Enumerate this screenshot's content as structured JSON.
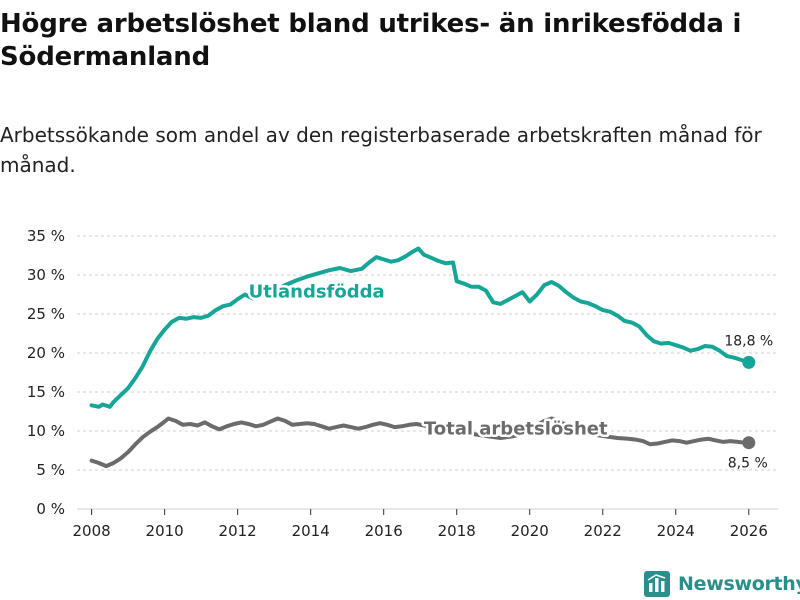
{
  "header": {
    "title": "Högre arbetslöshet bland utrikes- än inrikesfödda i Södermanland",
    "subtitle": "Arbetssökande som andel av den registerbaserade arbetskraften månad för månad."
  },
  "brand": {
    "name": "Newsworthy",
    "icon": "bar-chart-logo-icon",
    "color": "#2a8f8a"
  },
  "chart_data": {
    "type": "line",
    "ylim": [
      0,
      35
    ],
    "xlim": [
      2007.6,
      2026.8
    ],
    "yticks": [
      {
        "value": 0,
        "label": "0 %"
      },
      {
        "value": 5,
        "label": "5 %"
      },
      {
        "value": 10,
        "label": "10 %"
      },
      {
        "value": 15,
        "label": "15 %"
      },
      {
        "value": 20,
        "label": "20 %"
      },
      {
        "value": 25,
        "label": "25 %"
      },
      {
        "value": 30,
        "label": "30 %"
      },
      {
        "value": 35,
        "label": "35 %"
      }
    ],
    "xticks": [
      {
        "value": 2008,
        "label": "2008"
      },
      {
        "value": 2010,
        "label": "2010"
      },
      {
        "value": 2012,
        "label": "2012"
      },
      {
        "value": 2014,
        "label": "2014"
      },
      {
        "value": 2016,
        "label": "2016"
      },
      {
        "value": 2018,
        "label": "2018"
      },
      {
        "value": 2020,
        "label": "2020"
      },
      {
        "value": 2022,
        "label": "2022"
      },
      {
        "value": 2024,
        "label": "2024"
      },
      {
        "value": 2026,
        "label": "2026"
      }
    ],
    "grid": true,
    "series": [
      {
        "name": "Utlandsfödda",
        "color": "#16a596",
        "end_label": "18,8 %",
        "points": [
          [
            2008.0,
            13.3
          ],
          [
            2008.2,
            13.1
          ],
          [
            2008.3,
            13.4
          ],
          [
            2008.5,
            13.1
          ],
          [
            2008.6,
            13.7
          ],
          [
            2008.8,
            14.6
          ],
          [
            2009.0,
            15.5
          ],
          [
            2009.2,
            16.8
          ],
          [
            2009.4,
            18.3
          ],
          [
            2009.6,
            20.2
          ],
          [
            2009.8,
            21.8
          ],
          [
            2010.0,
            23.0
          ],
          [
            2010.2,
            24.0
          ],
          [
            2010.4,
            24.5
          ],
          [
            2010.6,
            24.4
          ],
          [
            2010.8,
            24.6
          ],
          [
            2011.0,
            24.5
          ],
          [
            2011.2,
            24.8
          ],
          [
            2011.4,
            25.5
          ],
          [
            2011.6,
            26.0
          ],
          [
            2011.8,
            26.2
          ],
          [
            2012.0,
            26.9
          ],
          [
            2012.2,
            27.5
          ],
          [
            2012.4,
            27.0
          ],
          [
            2012.6,
            27.3
          ],
          [
            2012.8,
            27.6
          ],
          [
            2013.0,
            28.0
          ],
          [
            2013.3,
            28.7
          ],
          [
            2013.6,
            29.3
          ],
          [
            2013.9,
            29.8
          ],
          [
            2014.2,
            30.2
          ],
          [
            2014.5,
            30.6
          ],
          [
            2014.8,
            30.9
          ],
          [
            2015.1,
            30.5
          ],
          [
            2015.4,
            30.8
          ],
          [
            2015.6,
            31.6
          ],
          [
            2015.8,
            32.3
          ],
          [
            2016.0,
            32.0
          ],
          [
            2016.2,
            31.7
          ],
          [
            2016.4,
            31.9
          ],
          [
            2016.6,
            32.4
          ],
          [
            2016.8,
            33.0
          ],
          [
            2016.95,
            33.4
          ],
          [
            2017.1,
            32.6
          ],
          [
            2017.3,
            32.2
          ],
          [
            2017.5,
            31.8
          ],
          [
            2017.7,
            31.5
          ],
          [
            2017.9,
            31.6
          ],
          [
            2018.0,
            29.2
          ],
          [
            2018.2,
            28.9
          ],
          [
            2018.4,
            28.5
          ],
          [
            2018.6,
            28.5
          ],
          [
            2018.8,
            28.0
          ],
          [
            2019.0,
            26.5
          ],
          [
            2019.2,
            26.3
          ],
          [
            2019.4,
            26.8
          ],
          [
            2019.6,
            27.3
          ],
          [
            2019.8,
            27.8
          ],
          [
            2020.0,
            26.6
          ],
          [
            2020.2,
            27.5
          ],
          [
            2020.4,
            28.7
          ],
          [
            2020.6,
            29.1
          ],
          [
            2020.8,
            28.6
          ],
          [
            2021.0,
            27.8
          ],
          [
            2021.2,
            27.1
          ],
          [
            2021.4,
            26.6
          ],
          [
            2021.6,
            26.4
          ],
          [
            2021.8,
            26.0
          ],
          [
            2022.0,
            25.5
          ],
          [
            2022.2,
            25.3
          ],
          [
            2022.4,
            24.8
          ],
          [
            2022.6,
            24.1
          ],
          [
            2022.8,
            23.9
          ],
          [
            2023.0,
            23.4
          ],
          [
            2023.2,
            22.3
          ],
          [
            2023.4,
            21.5
          ],
          [
            2023.6,
            21.2
          ],
          [
            2023.8,
            21.3
          ],
          [
            2024.0,
            21.0
          ],
          [
            2024.2,
            20.7
          ],
          [
            2024.4,
            20.3
          ],
          [
            2024.6,
            20.5
          ],
          [
            2024.8,
            20.9
          ],
          [
            2025.0,
            20.8
          ],
          [
            2025.2,
            20.3
          ],
          [
            2025.4,
            19.6
          ],
          [
            2025.6,
            19.4
          ],
          [
            2025.8,
            19.1
          ],
          [
            2026.0,
            18.8
          ]
        ]
      },
      {
        "name": "Total arbetslöshet",
        "color": "#6b6b6b",
        "end_label": "8,5 %",
        "points": [
          [
            2008.0,
            6.2
          ],
          [
            2008.2,
            5.9
          ],
          [
            2008.4,
            5.5
          ],
          [
            2008.6,
            5.9
          ],
          [
            2008.8,
            6.5
          ],
          [
            2009.0,
            7.3
          ],
          [
            2009.2,
            8.3
          ],
          [
            2009.4,
            9.2
          ],
          [
            2009.6,
            9.9
          ],
          [
            2009.8,
            10.5
          ],
          [
            2010.0,
            11.2
          ],
          [
            2010.1,
            11.6
          ],
          [
            2010.3,
            11.3
          ],
          [
            2010.5,
            10.8
          ],
          [
            2010.7,
            10.9
          ],
          [
            2010.9,
            10.7
          ],
          [
            2011.1,
            11.1
          ],
          [
            2011.3,
            10.6
          ],
          [
            2011.5,
            10.2
          ],
          [
            2011.7,
            10.6
          ],
          [
            2011.9,
            10.9
          ],
          [
            2012.1,
            11.1
          ],
          [
            2012.3,
            10.9
          ],
          [
            2012.5,
            10.6
          ],
          [
            2012.7,
            10.8
          ],
          [
            2012.9,
            11.2
          ],
          [
            2013.1,
            11.6
          ],
          [
            2013.3,
            11.3
          ],
          [
            2013.5,
            10.8
          ],
          [
            2013.7,
            10.9
          ],
          [
            2013.9,
            11.0
          ],
          [
            2014.1,
            10.9
          ],
          [
            2014.3,
            10.6
          ],
          [
            2014.5,
            10.3
          ],
          [
            2014.7,
            10.5
          ],
          [
            2014.9,
            10.7
          ],
          [
            2015.1,
            10.5
          ],
          [
            2015.3,
            10.3
          ],
          [
            2015.5,
            10.5
          ],
          [
            2015.7,
            10.8
          ],
          [
            2015.9,
            11.0
          ],
          [
            2016.1,
            10.8
          ],
          [
            2016.3,
            10.5
          ],
          [
            2016.5,
            10.6
          ],
          [
            2016.7,
            10.8
          ],
          [
            2016.9,
            10.9
          ],
          [
            2017.1,
            10.7
          ],
          [
            2017.3,
            10.5
          ],
          [
            2017.6,
            10.2
          ],
          [
            2017.9,
            10.0
          ],
          [
            2018.2,
            9.8
          ],
          [
            2018.6,
            9.5
          ],
          [
            2018.9,
            9.3
          ],
          [
            2019.2,
            9.1
          ],
          [
            2019.5,
            9.3
          ],
          [
            2019.8,
            9.6
          ],
          [
            2020.1,
            10.5
          ],
          [
            2020.4,
            11.3
          ],
          [
            2020.6,
            11.6
          ],
          [
            2020.9,
            11.0
          ],
          [
            2021.2,
            10.4
          ],
          [
            2021.5,
            10.0
          ],
          [
            2021.8,
            9.5
          ],
          [
            2022.1,
            9.3
          ],
          [
            2022.4,
            9.1
          ],
          [
            2022.7,
            9.0
          ],
          [
            2022.9,
            8.9
          ],
          [
            2023.1,
            8.7
          ],
          [
            2023.3,
            8.3
          ],
          [
            2023.5,
            8.4
          ],
          [
            2023.7,
            8.6
          ],
          [
            2023.9,
            8.8
          ],
          [
            2024.1,
            8.7
          ],
          [
            2024.3,
            8.5
          ],
          [
            2024.5,
            8.7
          ],
          [
            2024.7,
            8.9
          ],
          [
            2024.9,
            9.0
          ],
          [
            2025.1,
            8.8
          ],
          [
            2025.3,
            8.6
          ],
          [
            2025.5,
            8.7
          ],
          [
            2025.7,
            8.6
          ],
          [
            2025.9,
            8.5
          ],
          [
            2026.0,
            8.5
          ]
        ]
      }
    ]
  }
}
